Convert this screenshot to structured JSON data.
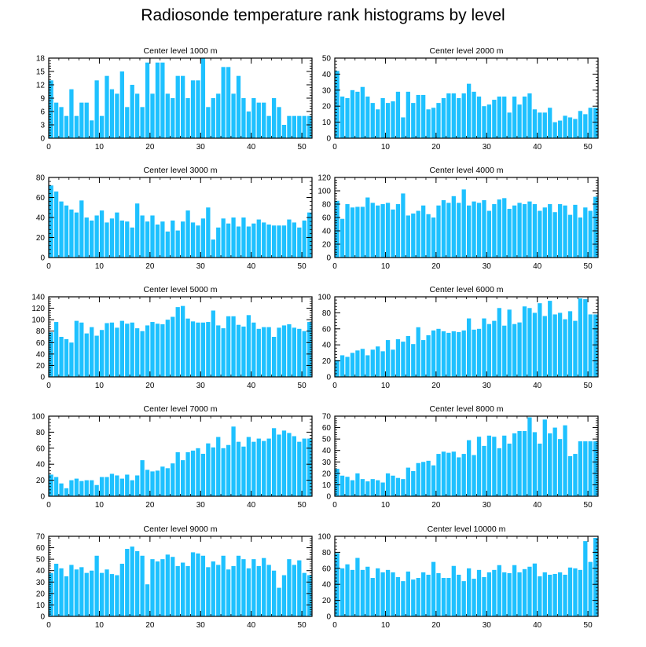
{
  "figure": {
    "title": "Radiosonde temperature rank histograms by level",
    "bar_color": "#1ec1ff",
    "axis_color": "#000000"
  },
  "chart_data": [
    {
      "type": "bar",
      "title": "Center level 1000 m",
      "xlim": [
        0,
        52
      ],
      "xticks": [
        0,
        10,
        20,
        30,
        40,
        50
      ],
      "ylim": [
        0,
        18
      ],
      "yticks": [
        0,
        3,
        6,
        9,
        12,
        15,
        18
      ],
      "x": [
        0,
        1,
        2,
        3,
        4,
        5,
        6,
        7,
        8,
        9,
        10,
        11,
        12,
        13,
        14,
        15,
        16,
        17,
        18,
        19,
        20,
        21,
        22,
        23,
        24,
        25,
        26,
        27,
        28,
        29,
        30,
        31,
        32,
        33,
        34,
        35,
        36,
        37,
        38,
        39,
        40,
        41,
        42,
        43,
        44,
        45,
        46,
        47,
        48,
        49,
        50,
        51
      ],
      "values": [
        13,
        8,
        7,
        5,
        11,
        5,
        8,
        8,
        4,
        13,
        5,
        14,
        11,
        10,
        15,
        7,
        12,
        10,
        7,
        17,
        10,
        17,
        17,
        10,
        9,
        14,
        14,
        9,
        13,
        13,
        18,
        7,
        9,
        10,
        16,
        16,
        10,
        14,
        9,
        6,
        9,
        8,
        8,
        5,
        9,
        7,
        3,
        5,
        5,
        5,
        5,
        5
      ]
    },
    {
      "type": "bar",
      "title": "Center level 2000 m",
      "xlim": [
        0,
        52
      ],
      "xticks": [
        0,
        10,
        20,
        30,
        40,
        50
      ],
      "ylim": [
        0,
        50
      ],
      "yticks": [
        0,
        10,
        20,
        30,
        40,
        50
      ],
      "x": [
        0,
        1,
        2,
        3,
        4,
        5,
        6,
        7,
        8,
        9,
        10,
        11,
        12,
        13,
        14,
        15,
        16,
        17,
        18,
        19,
        20,
        21,
        22,
        23,
        24,
        25,
        26,
        27,
        28,
        29,
        30,
        31,
        32,
        33,
        34,
        35,
        36,
        37,
        38,
        39,
        40,
        41,
        42,
        43,
        44,
        45,
        46,
        47,
        48,
        49,
        50,
        51
      ],
      "values": [
        42,
        26,
        25,
        30,
        29,
        32,
        26,
        22,
        18,
        25,
        22,
        23,
        29,
        13,
        29,
        22,
        27,
        27,
        18,
        19,
        22,
        25,
        28,
        28,
        25,
        28,
        34,
        29,
        26,
        20,
        21,
        24,
        26,
        26,
        16,
        26,
        21,
        26,
        28,
        18,
        16,
        16,
        19,
        10,
        11,
        14,
        13,
        12,
        17,
        15,
        19,
        19
      ]
    },
    {
      "type": "bar",
      "title": "Center level 3000 m",
      "xlim": [
        0,
        52
      ],
      "xticks": [
        0,
        10,
        20,
        30,
        40,
        50
      ],
      "ylim": [
        0,
        80
      ],
      "yticks": [
        0,
        20,
        40,
        60,
        80
      ],
      "x": [
        0,
        1,
        2,
        3,
        4,
        5,
        6,
        7,
        8,
        9,
        10,
        11,
        12,
        13,
        14,
        15,
        16,
        17,
        18,
        19,
        20,
        21,
        22,
        23,
        24,
        25,
        26,
        27,
        28,
        29,
        30,
        31,
        32,
        33,
        34,
        35,
        36,
        37,
        38,
        39,
        40,
        41,
        42,
        43,
        44,
        45,
        46,
        47,
        48,
        49,
        50,
        51
      ],
      "values": [
        72,
        66,
        56,
        52,
        48,
        45,
        57,
        40,
        37,
        42,
        47,
        35,
        39,
        45,
        37,
        36,
        30,
        54,
        42,
        36,
        42,
        33,
        36,
        26,
        37,
        27,
        36,
        47,
        35,
        32,
        39,
        50,
        18,
        30,
        39,
        34,
        40,
        31,
        40,
        31,
        34,
        38,
        35,
        33,
        32,
        32,
        32,
        38,
        35,
        30,
        37,
        45
      ]
    },
    {
      "type": "bar",
      "title": "Center level 4000 m",
      "xlim": [
        0,
        52
      ],
      "xticks": [
        0,
        10,
        20,
        30,
        40,
        50
      ],
      "ylim": [
        0,
        120
      ],
      "yticks": [
        0,
        20,
        40,
        60,
        80,
        100,
        120
      ],
      "x": [
        0,
        1,
        2,
        3,
        4,
        5,
        6,
        7,
        8,
        9,
        10,
        11,
        12,
        13,
        14,
        15,
        16,
        17,
        18,
        19,
        20,
        21,
        22,
        23,
        24,
        25,
        26,
        27,
        28,
        29,
        30,
        31,
        32,
        33,
        34,
        35,
        36,
        37,
        38,
        39,
        40,
        41,
        42,
        43,
        44,
        45,
        46,
        47,
        48,
        49,
        50,
        51
      ],
      "values": [
        85,
        58,
        80,
        75,
        76,
        76,
        90,
        82,
        78,
        80,
        82,
        72,
        80,
        96,
        63,
        66,
        70,
        78,
        65,
        60,
        78,
        86,
        82,
        92,
        82,
        102,
        78,
        84,
        82,
        86,
        70,
        80,
        87,
        89,
        73,
        78,
        82,
        80,
        84,
        80,
        70,
        75,
        80,
        68,
        80,
        78,
        64,
        79,
        60,
        75,
        70,
        91
      ]
    },
    {
      "type": "bar",
      "title": "Center level 5000 m",
      "xlim": [
        0,
        52
      ],
      "xticks": [
        0,
        10,
        20,
        30,
        40,
        50
      ],
      "ylim": [
        0,
        140
      ],
      "yticks": [
        0,
        20,
        40,
        60,
        80,
        100,
        120,
        140
      ],
      "x": [
        0,
        1,
        2,
        3,
        4,
        5,
        6,
        7,
        8,
        9,
        10,
        11,
        12,
        13,
        14,
        15,
        16,
        17,
        18,
        19,
        20,
        21,
        22,
        23,
        24,
        25,
        26,
        27,
        28,
        29,
        30,
        31,
        32,
        33,
        34,
        35,
        36,
        37,
        38,
        39,
        40,
        41,
        42,
        43,
        44,
        45,
        46,
        47,
        48,
        49,
        50,
        51
      ],
      "values": [
        78,
        96,
        70,
        66,
        60,
        98,
        95,
        76,
        87,
        72,
        82,
        94,
        95,
        86,
        98,
        93,
        95,
        85,
        80,
        90,
        96,
        93,
        92,
        100,
        105,
        122,
        124,
        102,
        97,
        95,
        95,
        96,
        116,
        90,
        85,
        106,
        106,
        91,
        88,
        108,
        95,
        84,
        87,
        87,
        70,
        86,
        90,
        92,
        86,
        84,
        80,
        96
      ]
    },
    {
      "type": "bar",
      "title": "Center level 6000 m",
      "xlim": [
        0,
        52
      ],
      "xticks": [
        0,
        10,
        20,
        30,
        40,
        50
      ],
      "ylim": [
        0,
        100
      ],
      "yticks": [
        0,
        20,
        40,
        60,
        80,
        100
      ],
      "x": [
        0,
        1,
        2,
        3,
        4,
        5,
        6,
        7,
        8,
        9,
        10,
        11,
        12,
        13,
        14,
        15,
        16,
        17,
        18,
        19,
        20,
        21,
        22,
        23,
        24,
        25,
        26,
        27,
        28,
        29,
        30,
        31,
        32,
        33,
        34,
        35,
        36,
        37,
        38,
        39,
        40,
        41,
        42,
        43,
        44,
        45,
        46,
        47,
        48,
        49,
        50,
        51
      ],
      "values": [
        21,
        27,
        25,
        30,
        33,
        35,
        27,
        34,
        38,
        32,
        46,
        34,
        47,
        44,
        51,
        41,
        62,
        46,
        52,
        58,
        60,
        57,
        55,
        57,
        56,
        58,
        73,
        59,
        60,
        73,
        66,
        70,
        86,
        64,
        84,
        66,
        68,
        88,
        86,
        80,
        92,
        76,
        95,
        78,
        80,
        72,
        82,
        70,
        98,
        97,
        78,
        78
      ]
    },
    {
      "type": "bar",
      "title": "Center level 7000 m",
      "xlim": [
        0,
        52
      ],
      "xticks": [
        0,
        10,
        20,
        30,
        40,
        50
      ],
      "ylim": [
        0,
        100
      ],
      "yticks": [
        0,
        20,
        40,
        60,
        80,
        100
      ],
      "x": [
        0,
        1,
        2,
        3,
        4,
        5,
        6,
        7,
        8,
        9,
        10,
        11,
        12,
        13,
        14,
        15,
        16,
        17,
        18,
        19,
        20,
        21,
        22,
        23,
        24,
        25,
        26,
        27,
        28,
        29,
        30,
        31,
        32,
        33,
        34,
        35,
        36,
        37,
        38,
        39,
        40,
        41,
        42,
        43,
        44,
        45,
        46,
        47,
        48,
        49,
        50,
        51
      ],
      "values": [
        27,
        24,
        16,
        10,
        20,
        22,
        19,
        20,
        20,
        14,
        24,
        24,
        28,
        26,
        22,
        27,
        20,
        26,
        45,
        33,
        31,
        32,
        37,
        35,
        41,
        55,
        45,
        55,
        57,
        60,
        53,
        66,
        61,
        74,
        60,
        64,
        87,
        68,
        62,
        74,
        68,
        72,
        69,
        72,
        85,
        77,
        82,
        79,
        75,
        68,
        72,
        72
      ]
    },
    {
      "type": "bar",
      "title": "Center level 8000 m",
      "xlim": [
        0,
        52
      ],
      "xticks": [
        0,
        10,
        20,
        30,
        40,
        50
      ],
      "ylim": [
        0,
        70
      ],
      "yticks": [
        0,
        10,
        20,
        30,
        40,
        50,
        60,
        70
      ],
      "x": [
        0,
        1,
        2,
        3,
        4,
        5,
        6,
        7,
        8,
        9,
        10,
        11,
        12,
        13,
        14,
        15,
        16,
        17,
        18,
        19,
        20,
        21,
        22,
        23,
        24,
        25,
        26,
        27,
        28,
        29,
        30,
        31,
        32,
        33,
        34,
        35,
        36,
        37,
        38,
        39,
        40,
        41,
        42,
        43,
        44,
        45,
        46,
        47,
        48,
        49,
        50,
        51
      ],
      "values": [
        24,
        18,
        17,
        14,
        20,
        15,
        13,
        15,
        14,
        12,
        20,
        18,
        16,
        15,
        25,
        22,
        29,
        30,
        31,
        27,
        37,
        39,
        38,
        39,
        34,
        37,
        49,
        36,
        52,
        44,
        53,
        52,
        42,
        53,
        46,
        55,
        57,
        57,
        69,
        56,
        46,
        67,
        55,
        60,
        50,
        62,
        35,
        37,
        48,
        48,
        48,
        48
      ]
    },
    {
      "type": "bar",
      "title": "Center level 9000 m",
      "xlim": [
        0,
        52
      ],
      "xticks": [
        0,
        10,
        20,
        30,
        40,
        50
      ],
      "ylim": [
        0,
        70
      ],
      "yticks": [
        0,
        10,
        20,
        30,
        40,
        50,
        60,
        70
      ],
      "x": [
        0,
        1,
        2,
        3,
        4,
        5,
        6,
        7,
        8,
        9,
        10,
        11,
        12,
        13,
        14,
        15,
        16,
        17,
        18,
        19,
        20,
        21,
        22,
        23,
        24,
        25,
        26,
        27,
        28,
        29,
        30,
        31,
        32,
        33,
        34,
        35,
        36,
        37,
        38,
        39,
        40,
        41,
        42,
        43,
        44,
        45,
        46,
        47,
        48,
        49,
        50,
        51
      ],
      "values": [
        38,
        46,
        42,
        35,
        45,
        41,
        43,
        38,
        40,
        53,
        38,
        41,
        37,
        36,
        46,
        59,
        61,
        57,
        53,
        28,
        50,
        48,
        50,
        54,
        52,
        44,
        47,
        44,
        56,
        55,
        53,
        43,
        48,
        45,
        53,
        41,
        44,
        53,
        50,
        42,
        50,
        44,
        51,
        45,
        40,
        25,
        36,
        50,
        45,
        49,
        38,
        36
      ]
    },
    {
      "type": "bar",
      "title": "Center level 10000 m",
      "xlim": [
        0,
        52
      ],
      "xticks": [
        0,
        10,
        20,
        30,
        40,
        50
      ],
      "ylim": [
        0,
        100
      ],
      "yticks": [
        0,
        20,
        40,
        60,
        80,
        100
      ],
      "x": [
        0,
        1,
        2,
        3,
        4,
        5,
        6,
        7,
        8,
        9,
        10,
        11,
        12,
        13,
        14,
        15,
        16,
        17,
        18,
        19,
        20,
        21,
        22,
        23,
        24,
        25,
        26,
        27,
        28,
        29,
        30,
        31,
        32,
        33,
        34,
        35,
        36,
        37,
        38,
        39,
        40,
        41,
        42,
        43,
        44,
        45,
        46,
        47,
        48,
        49,
        50,
        51
      ],
      "values": [
        79,
        60,
        65,
        58,
        73,
        58,
        62,
        48,
        60,
        55,
        58,
        55,
        49,
        44,
        56,
        46,
        48,
        55,
        52,
        68,
        54,
        48,
        48,
        63,
        52,
        44,
        60,
        47,
        58,
        49,
        55,
        58,
        64,
        55,
        54,
        64,
        55,
        59,
        62,
        66,
        50,
        55,
        52,
        53,
        55,
        52,
        61,
        60,
        58,
        94,
        68,
        98
      ]
    }
  ]
}
